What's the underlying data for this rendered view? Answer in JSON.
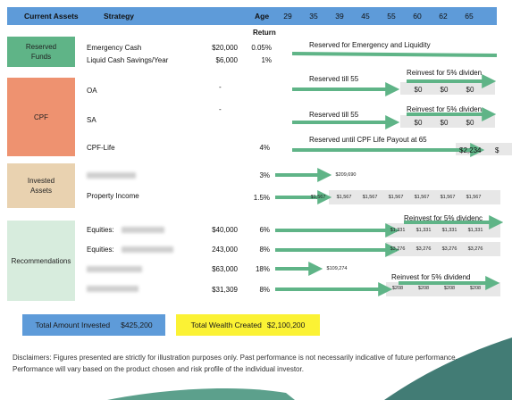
{
  "header": {
    "current_assets": "Current Assets",
    "strategy": "Strategy",
    "age": "Age",
    "ages": [
      "29",
      "35",
      "39",
      "45",
      "55",
      "60",
      "62",
      "65"
    ],
    "return_label": "Return"
  },
  "categories": {
    "reserved": "Reserved Funds",
    "cpf": "CPF",
    "invested": "Invested Assets",
    "recommendations": "Recommendations"
  },
  "reserved": {
    "emergency_label": "Emergency Cash",
    "emergency_amount": "$20,000",
    "emergency_return": "0.05%",
    "liquid_label": "Liquid Cash Savings/Year",
    "liquid_amount": "$6,000",
    "liquid_return": "1%",
    "note": "Reserved for Emergency and Liquidity"
  },
  "cpf": {
    "oa_label": "OA",
    "oa_amount": "-",
    "oa_note": "Reserved till 55",
    "oa_reinvest": "Reinvest for 5% dividen",
    "oa_values": [
      "$0",
      "$0",
      "$0"
    ],
    "sa_label": "SA",
    "sa_amount": "-",
    "sa_note": "Reserved till 55",
    "sa_reinvest": "Reinvest for 5% dividen",
    "sa_values": [
      "$0",
      "$0",
      "$0"
    ],
    "life_label": "CPF-Life",
    "life_return": "4%",
    "life_note": "Reserved until CPF Life Payout at 65",
    "life_value": "$2,234",
    "life_value_cut": "$"
  },
  "invested": {
    "row1_return": "3%",
    "row1_value": "$209,690",
    "property_label": "Property Income",
    "property_return": "1.5%",
    "property_values": [
      "$1,567",
      "$1,567",
      "$1,567",
      "$1,567",
      "$1,567",
      "$1,567",
      "$1,567"
    ]
  },
  "recommendations": {
    "eq1_label": "Equities:",
    "eq1_amount": "$40,000",
    "eq1_return": "6%",
    "eq1_reinvest": "Reinvest for 5% dividenc",
    "eq1_values": [
      "$1,331",
      "$1,331",
      "$1,331",
      "$1,331"
    ],
    "eq2_label": "Equities:",
    "eq2_amount": "243,000",
    "eq2_return": "8%",
    "eq2_values": [
      "$3,276",
      "$3,276",
      "$3,276",
      "$3,276"
    ],
    "row3_amount": "$63,000",
    "row3_return": "18%",
    "row3_value": "$109,274",
    "row4_amount": "$31,309",
    "row4_return": "8%",
    "row4_reinvest": "Reinvest for 5% dividend",
    "row4_values": [
      "$208",
      "$208",
      "$208",
      "$208"
    ]
  },
  "totals": {
    "invested_label": "Total Amount Invested",
    "invested_value": "$425,200",
    "wealth_label": "Total Wealth Created",
    "wealth_value": "$2,100,200"
  },
  "disclaimer": "Disclaimers: Figures presented are strictly for illustration purposes only. Past performance is not necessarily indicative of future performance. Performance will vary based on the product chosen and risk profile of the individual investor.",
  "colors": {
    "header": "#5e9bd9",
    "reserved": "#5fb487",
    "cpf": "#ee9270",
    "invested": "#e9d2b0",
    "recommendations": "#d7ecdd",
    "arrow": "#5fb487",
    "total_invested": "#5e9bd9",
    "total_wealth": "#fbf234",
    "wave": "#2d6e66"
  }
}
